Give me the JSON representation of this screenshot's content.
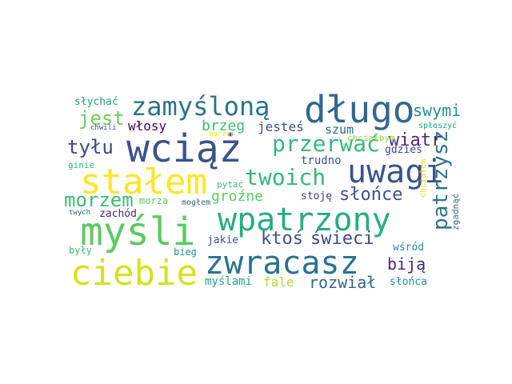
{
  "words": [
    {
      "text": "wciąż",
      "color": "#3b528b"
    },
    {
      "text": "długo",
      "color": "#31688e"
    },
    {
      "text": "myśli",
      "color": "#5ec962"
    },
    {
      "text": "stałem",
      "color": "#fde725"
    },
    {
      "text": "ciebie",
      "color": "#d5e21a"
    },
    {
      "text": "wpatrzony",
      "color": "#26ad81"
    },
    {
      "text": "zwracasz",
      "color": "#2c728e"
    },
    {
      "text": "uwagi",
      "color": "#3b528b"
    },
    {
      "text": "zamyśloną",
      "color": "#2c728e"
    },
    {
      "text": "twoich",
      "color": "#35b779"
    },
    {
      "text": "przerwać",
      "color": "#35b779"
    },
    {
      "text": "patrzysz",
      "color": "#2c728e"
    },
    {
      "text": "morzem",
      "color": "#3dbc74"
    },
    {
      "text": "jest",
      "color": "#6ccd5a"
    },
    {
      "text": "tyłu",
      "color": "#3e4989"
    },
    {
      "text": "ktoś",
      "color": "#3b528b"
    },
    {
      "text": "świeci",
      "color": "#3e4989"
    },
    {
      "text": "słońce",
      "color": "#3b528b"
    },
    {
      "text": "wiatr",
      "color": "#482878"
    },
    {
      "text": "swymi",
      "color": "#21918c"
    },
    {
      "text": "rozwiał",
      "color": "#31688e"
    },
    {
      "text": "biją",
      "color": "#482878"
    },
    {
      "text": "brzeg",
      "color": "#3dbc74"
    },
    {
      "text": "włosy",
      "color": "#440154"
    },
    {
      "text": "jesteś",
      "color": "#3e4989"
    },
    {
      "text": "szum",
      "color": "#31688e"
    },
    {
      "text": "groźne",
      "color": "#5ec962"
    },
    {
      "text": "fale",
      "color": "#addc30"
    },
    {
      "text": "myślami",
      "color": "#20a486"
    },
    {
      "text": "słychać",
      "color": "#20a486"
    },
    {
      "text": "chwili",
      "color": "#3b528b"
    },
    {
      "text": "marzeń",
      "color": "#fde725"
    },
    {
      "text": "spłoszyć",
      "color": "#20a486"
    },
    {
      "text": "gdzieś",
      "color": "#3e4989"
    },
    {
      "text": "trudno",
      "color": "#3b528b"
    },
    {
      "text": "chciałbym",
      "color": "#90d743"
    },
    {
      "text": "stoję",
      "color": "#46327e"
    },
    {
      "text": "pytać",
      "color": "#35b779"
    },
    {
      "text": "ginie",
      "color": "#35b779"
    },
    {
      "text": "morza",
      "color": "#5ec962"
    },
    {
      "text": "mogłem",
      "color": "#31688e"
    },
    {
      "text": "twych",
      "color": "#31688e"
    },
    {
      "text": "zachód",
      "color": "#482878"
    },
    {
      "text": "jakie",
      "color": "#3b528b"
    },
    {
      "text": "wśród",
      "color": "#21918c"
    },
    {
      "text": "zgadnąć",
      "color": "#31688e"
    },
    {
      "text": "chciałem",
      "color": "#d5e21a"
    },
    {
      "text": "były",
      "color": "#3dbc74"
    },
    {
      "text": "bieg",
      "color": "#21918c"
    },
    {
      "text": "słońca",
      "color": "#21918c"
    }
  ]
}
